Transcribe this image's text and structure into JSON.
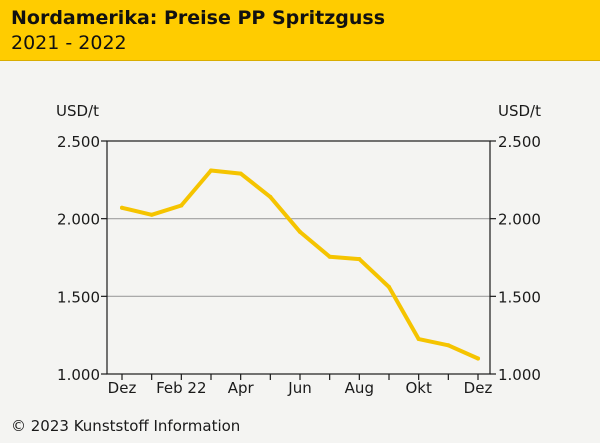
{
  "header": {
    "title": "Nordamerika: Preise PP Spritzguss",
    "subtitle": "2021 - 2022"
  },
  "footer": {
    "copyright": "© 2023 Kunststoff Information"
  },
  "colors": {
    "header_bg": "#ffcc00",
    "line": "#f5c400",
    "gridline": "#a0a0a0"
  },
  "chart_data": {
    "type": "line",
    "title": "Nordamerika: Preise PP Spritzguss",
    "subtitle": "2021 - 2022",
    "ylabel_left": "USD/t",
    "ylabel_right": "USD/t",
    "ylim": [
      1000,
      2500
    ],
    "yticks": [
      {
        "value": 2500,
        "label": "2.500"
      },
      {
        "value": 2000,
        "label": "2.000"
      },
      {
        "value": 1500,
        "label": "1.500"
      },
      {
        "value": 1000,
        "label": "1.000"
      }
    ],
    "x": [
      "Dez 21",
      "Jan 22",
      "Feb 22",
      "Mär 22",
      "Apr 22",
      "Mai 22",
      "Jun 22",
      "Jul 22",
      "Aug 22",
      "Sep 22",
      "Okt 22",
      "Nov 22",
      "Dez 22"
    ],
    "xtick_labels": [
      "Dez",
      "",
      "Feb 22",
      "",
      "Apr",
      "",
      "Jun",
      "",
      "Aug",
      "",
      "Okt",
      "",
      "Dez"
    ],
    "series": [
      {
        "name": "PP Spritzguss",
        "values": [
          2070,
          2025,
          2085,
          2310,
          2290,
          2140,
          1915,
          1755,
          1740,
          1560,
          1225,
          1185,
          1100
        ]
      }
    ],
    "grid": true
  }
}
